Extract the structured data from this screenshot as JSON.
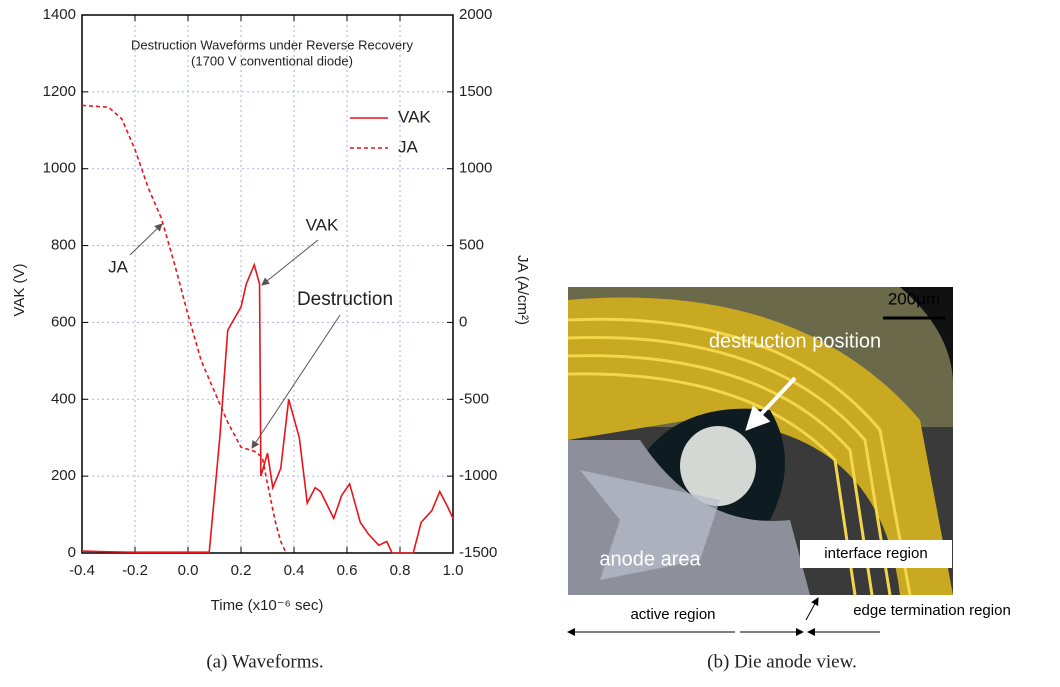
{
  "chart_data": {
    "type": "line",
    "title": "Destruction Waveforms under Reverse Recovery",
    "subtitle": "(1700 V conventional diode)",
    "x_label": "Time  (x10⁻⁶ sec)",
    "y_label": "VAK  (V)",
    "y2_label": "JA  (A/cm²)",
    "xlim": [
      -0.4,
      1.0
    ],
    "xticks": [
      -0.4,
      -0.2,
      {
        "value": 0,
        "label": "0.0"
      },
      0.2,
      0.4,
      0.6,
      0.8,
      {
        "value": 1,
        "label": "1.0"
      }
    ],
    "ylim": [
      0,
      1400
    ],
    "yticks": [
      0,
      200,
      400,
      600,
      800,
      1000,
      1200,
      1400
    ],
    "y2lim": [
      -1500,
      2000
    ],
    "y2ticks": [
      -1500,
      -1000,
      -500,
      0,
      500,
      1000,
      1500,
      2000
    ],
    "grid": true,
    "legend": "upper right",
    "series": [
      {
        "name": "VAK",
        "color": "#e8141b",
        "style": "solid",
        "x": [
          -0.4,
          -0.3,
          -0.2,
          -0.1,
          0.0,
          0.08,
          0.1,
          0.12,
          0.15,
          0.2,
          0.22,
          0.25,
          0.27,
          0.275,
          0.3,
          0.32,
          0.35,
          0.38,
          0.42,
          0.45,
          0.48,
          0.5,
          0.55,
          0.58,
          0.61,
          0.65,
          0.68,
          0.72,
          0.75,
          0.77,
          0.85,
          0.88,
          0.92,
          0.95,
          0.98,
          1.0
        ],
        "values": [
          5,
          3,
          2,
          2,
          2,
          2,
          150,
          300,
          580,
          640,
          700,
          750,
          700,
          200,
          260,
          170,
          220,
          400,
          300,
          130,
          170,
          160,
          90,
          150,
          180,
          80,
          50,
          20,
          30,
          0,
          0,
          80,
          110,
          160,
          120,
          90
        ]
      },
      {
        "name": "JA",
        "color": "#e8141b",
        "style": "dashed",
        "axis": "y2",
        "x": [
          -0.4,
          -0.3,
          -0.25,
          -0.2,
          -0.15,
          -0.1,
          -0.05,
          0.0,
          0.05,
          0.1,
          0.15,
          0.2,
          0.25,
          0.28,
          0.3,
          0.33,
          0.35,
          0.37
        ],
        "values": [
          1412,
          1400,
          1325,
          1125,
          875,
          675,
          375,
          50,
          -250,
          -450,
          -650,
          -812,
          -838,
          -875,
          -1050,
          -1300,
          -1425,
          -1500
        ]
      }
    ],
    "annotations": [
      "JA",
      "VAK",
      "Destruction"
    ]
  },
  "photo": {
    "scale": "200μm",
    "labels": [
      "destruction position",
      "anode area",
      "interface region",
      "active region",
      "edge termination region"
    ]
  },
  "captions": [
    "(a) Waveforms.",
    "(b) Die anode view."
  ]
}
